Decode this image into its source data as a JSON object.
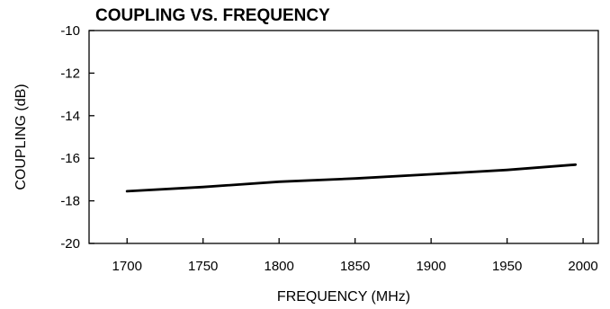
{
  "chart_data": {
    "type": "line",
    "title": "COUPLING VS. FREQUENCY",
    "xlabel": "FREQUENCY (MHz)",
    "ylabel": "COUPLING (dB)",
    "xlim": [
      1675,
      2010
    ],
    "ylim": [
      -20,
      -10
    ],
    "xticks": [
      1700,
      1750,
      1800,
      1850,
      1900,
      1950,
      2000
    ],
    "yticks": [
      -10,
      -12,
      -14,
      -16,
      -18,
      -20
    ],
    "grid": false,
    "series": [
      {
        "x": [
          1700,
          1750,
          1800,
          1850,
          1900,
          1950,
          1995
        ],
        "y": [
          -17.55,
          -17.35,
          -17.1,
          -16.95,
          -16.75,
          -16.55,
          -16.3
        ]
      }
    ]
  }
}
